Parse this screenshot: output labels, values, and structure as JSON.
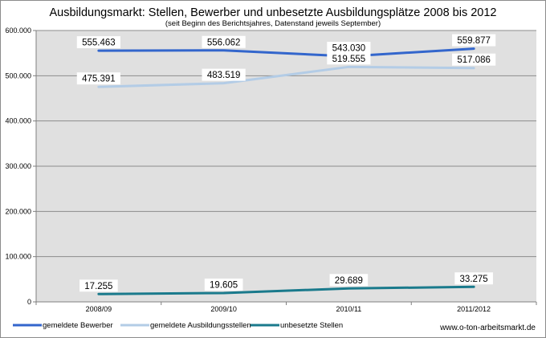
{
  "chart_data": {
    "type": "line",
    "title": "Ausbildungsmarkt: Stellen, Bewerber und unbesetzte Ausbildungsplätze 2008 bis 2012",
    "subtitle": "(seit Beginn des Berichtsjahres, Datenstand jeweils September)",
    "categories": [
      "2008/09",
      "2009/10",
      "2010/11",
      "2011/2012"
    ],
    "ylim": [
      0,
      600000
    ],
    "yticks": [
      0,
      100000,
      200000,
      300000,
      400000,
      500000,
      600000
    ],
    "ytick_labels": [
      "0",
      "100.000",
      "200.000",
      "300.000",
      "400.000",
      "500.000",
      "600.000"
    ],
    "grid": true,
    "legend": "bottom-left",
    "background": "#e0e0e0",
    "series": [
      {
        "name": "gemeldete Bewerber",
        "color": "#3366cc",
        "values": [
          555463,
          556062,
          543030,
          559877
        ],
        "labels": [
          "555.463",
          "556.062",
          "543.030",
          "559.877"
        ]
      },
      {
        "name": "gemeldete Ausbildungsstellen",
        "color": "#b3cce6",
        "values": [
          475391,
          483519,
          519555,
          517086
        ],
        "labels": [
          "475.391",
          "483.519",
          "519.555",
          "517.086"
        ]
      },
      {
        "name": "unbesetzte Stellen",
        "color": "#1a7a8c",
        "values": [
          17255,
          19605,
          29689,
          33275
        ],
        "labels": [
          "17.255",
          "19.605",
          "29.689",
          "33.275"
        ]
      }
    ]
  },
  "source": "www.o-ton-arbeitsmarkt.de"
}
